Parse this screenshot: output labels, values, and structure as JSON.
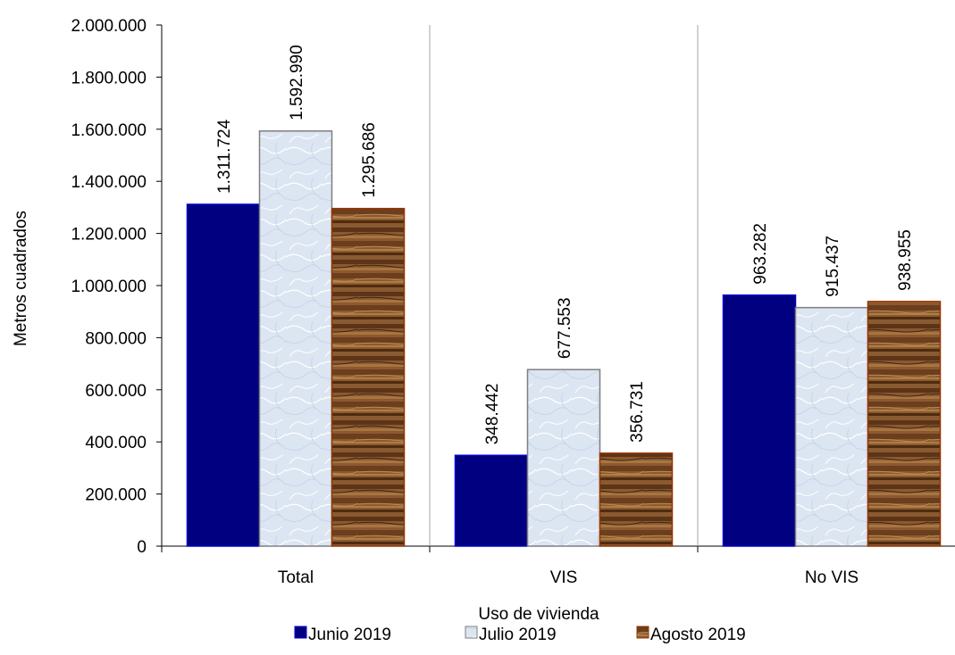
{
  "chart_data": {
    "type": "bar",
    "xlabel": "Uso de vivienda",
    "ylabel": "Metros cuadrados",
    "categories": [
      "Total",
      "VIS",
      "No VIS"
    ],
    "ylim": [
      0,
      2000000
    ],
    "yticks": [
      0,
      200000,
      400000,
      600000,
      800000,
      1000000,
      1200000,
      1400000,
      1600000,
      1800000,
      2000000
    ],
    "ytick_labels": [
      "0",
      "200.000",
      "400.000",
      "600.000",
      "800.000",
      "1.000.000",
      "1.200.000",
      "1.400.000",
      "1.600.000",
      "1.800.000",
      "2.000.000"
    ],
    "grid": false,
    "legend_position": "bottom",
    "series": [
      {
        "name": "Junio 2019",
        "values": [
          1311724,
          348442,
          963282
        ],
        "labels": [
          "1.311.724",
          "348.442",
          "963.282"
        ],
        "color": "#000080",
        "pattern": "solid"
      },
      {
        "name": "Julio 2019",
        "values": [
          1592990,
          677553,
          915437
        ],
        "labels": [
          "1.592.990",
          "677.553",
          "915.437"
        ],
        "color": "#DCE6F2",
        "pattern": "light-texture"
      },
      {
        "name": "Agosto 2019",
        "values": [
          1295686,
          356731,
          938955
        ],
        "labels": [
          "1.295.686",
          "356.731",
          "938.955"
        ],
        "color": "#7A4A24",
        "pattern": "wood-texture"
      }
    ]
  }
}
